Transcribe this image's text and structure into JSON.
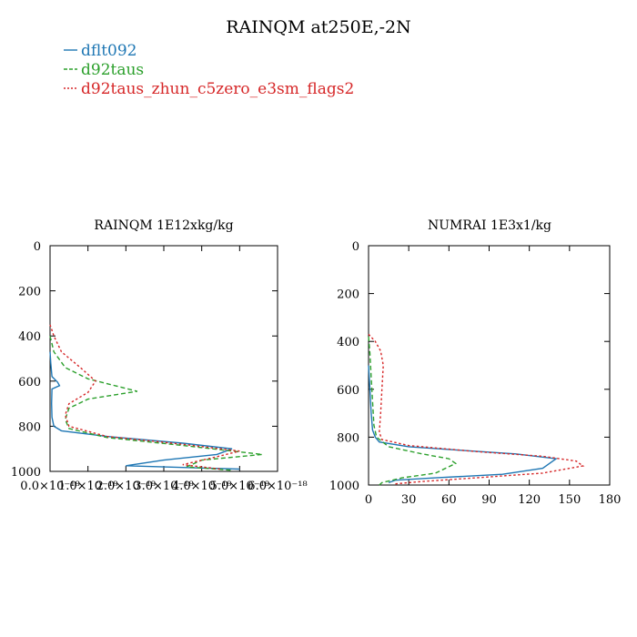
{
  "figure": {
    "title": "RAINQM at250E,-2N",
    "legend": [
      {
        "name": "dflt092",
        "color": "#1f77b4",
        "dash": "solid"
      },
      {
        "name": "d92taus",
        "color": "#2ca02c",
        "dash": "dashed"
      },
      {
        "name": "d92taus_zhun_c5zero_e3sm_flags2",
        "color": "#d62728",
        "dash": "dotted"
      }
    ]
  },
  "chart_data": [
    {
      "type": "line",
      "title": "RAINQM  1E12xkg/kg",
      "xlim": [
        0,
        6e-18
      ],
      "ylim": [
        1000,
        0
      ],
      "xticks": [
        "0.0×10⁻¹⁸",
        "1.0×10⁻¹⁸",
        "2.0×10⁻¹⁸",
        "3.0×10⁻¹⁸",
        "4.0×10⁻¹⁸",
        "5.0×10⁻¹⁸",
        "6.0×10⁻¹⁸"
      ],
      "xtick_values": [
        0,
        1e-18,
        2e-18,
        3e-18,
        4e-18,
        5e-18,
        6e-18
      ],
      "yticks": [
        "0",
        "200",
        "400",
        "600",
        "800",
        "1000"
      ],
      "ytick_values": [
        0,
        200,
        400,
        600,
        800,
        1000
      ],
      "series": [
        {
          "name": "dflt092",
          "color": "#1f77b4",
          "dash": "solid",
          "points": [
            [
              0,
              470
            ],
            [
              2e-20,
              520
            ],
            [
              5e-20,
              580
            ],
            [
              2e-19,
              605
            ],
            [
              2.5e-19,
              620
            ],
            [
              5e-20,
              635
            ],
            [
              4e-20,
              700
            ],
            [
              5e-20,
              760
            ],
            [
              1e-19,
              800
            ],
            [
              3e-19,
              820
            ],
            [
              1.5e-18,
              845
            ],
            [
              3.5e-18,
              875
            ],
            [
              4.8e-18,
              900
            ],
            [
              4.4e-18,
              925
            ],
            [
              3e-18,
              950
            ],
            [
              2e-18,
              975
            ],
            [
              4e-18,
              985
            ],
            [
              5e-18,
              990
            ]
          ]
        },
        {
          "name": "d92taus",
          "color": "#2ca02c",
          "dash": "dashed",
          "points": [
            [
              0,
              400
            ],
            [
              1e-19,
              470
            ],
            [
              4e-19,
              540
            ],
            [
              1e-18,
              590
            ],
            [
              2.3e-18,
              645
            ],
            [
              1e-18,
              680
            ],
            [
              5e-19,
              720
            ],
            [
              4e-19,
              770
            ],
            [
              5e-19,
              810
            ],
            [
              1.5e-18,
              850
            ],
            [
              3.5e-18,
              885
            ],
            [
              5.6e-18,
              925
            ],
            [
              4e-18,
              950
            ],
            [
              3.6e-18,
              980
            ],
            [
              4.8e-18,
              995
            ]
          ]
        },
        {
          "name": "d92taus_zhun_c5zero_e3sm_flags2",
          "color": "#d62728",
          "dash": "dotted",
          "points": [
            [
              0,
              350
            ],
            [
              1e-19,
              400
            ],
            [
              3e-19,
              470
            ],
            [
              8e-19,
              540
            ],
            [
              1.2e-18,
              600
            ],
            [
              1e-18,
              650
            ],
            [
              5e-19,
              700
            ],
            [
              4e-19,
              750
            ],
            [
              5e-19,
              800
            ],
            [
              1.5e-18,
              845
            ],
            [
              3.5e-18,
              880
            ],
            [
              5e-18,
              910
            ],
            [
              4.4e-18,
              935
            ],
            [
              3.5e-18,
              970
            ],
            [
              4.5e-18,
              990
            ]
          ]
        }
      ]
    },
    {
      "type": "line",
      "title": "NUMRAI  1E3x1/kg",
      "xlim": [
        0,
        180
      ],
      "ylim": [
        1000,
        0
      ],
      "xticks": [
        "0",
        "30",
        "60",
        "90",
        "120",
        "150",
        "180"
      ],
      "xtick_values": [
        0,
        30,
        60,
        90,
        120,
        150,
        180
      ],
      "yticks": [
        "0",
        "200",
        "400",
        "600",
        "800",
        "1000"
      ],
      "ytick_values": [
        0,
        200,
        400,
        600,
        800,
        1000
      ],
      "series": [
        {
          "name": "dflt092",
          "color": "#1f77b4",
          "dash": "solid",
          "points": [
            [
              0,
              500
            ],
            [
              1,
              600
            ],
            [
              2,
              700
            ],
            [
              3,
              770
            ],
            [
              5,
              800
            ],
            [
              8,
              820
            ],
            [
              30,
              840
            ],
            [
              70,
              855
            ],
            [
              110,
              870
            ],
            [
              140,
              890
            ],
            [
              130,
              930
            ],
            [
              100,
              955
            ],
            [
              50,
              970
            ],
            [
              20,
              980
            ],
            [
              15,
              990
            ]
          ]
        },
        {
          "name": "d92taus",
          "color": "#2ca02c",
          "dash": "dashed",
          "points": [
            [
              0,
              380
            ],
            [
              1,
              450
            ],
            [
              2,
              550
            ],
            [
              3,
              650
            ],
            [
              4,
              750
            ],
            [
              6,
              800
            ],
            [
              15,
              840
            ],
            [
              40,
              870
            ],
            [
              60,
              890
            ],
            [
              65,
              910
            ],
            [
              50,
              950
            ],
            [
              25,
              970
            ],
            [
              10,
              990
            ],
            [
              8,
              1000
            ]
          ]
        },
        {
          "name": "d92taus_zhun_c5zero_e3sm_flags2",
          "color": "#d62728",
          "dash": "dotted",
          "points": [
            [
              0,
              370
            ],
            [
              5,
              400
            ],
            [
              9,
              440
            ],
            [
              11,
              500
            ],
            [
              10,
              600
            ],
            [
              9,
              700
            ],
            [
              8,
              780
            ],
            [
              10,
              810
            ],
            [
              30,
              835
            ],
            [
              80,
              860
            ],
            [
              130,
              880
            ],
            [
              155,
              900
            ],
            [
              160,
              920
            ],
            [
              130,
              950
            ],
            [
              80,
              970
            ],
            [
              40,
              985
            ],
            [
              20,
              995
            ]
          ]
        }
      ]
    }
  ]
}
